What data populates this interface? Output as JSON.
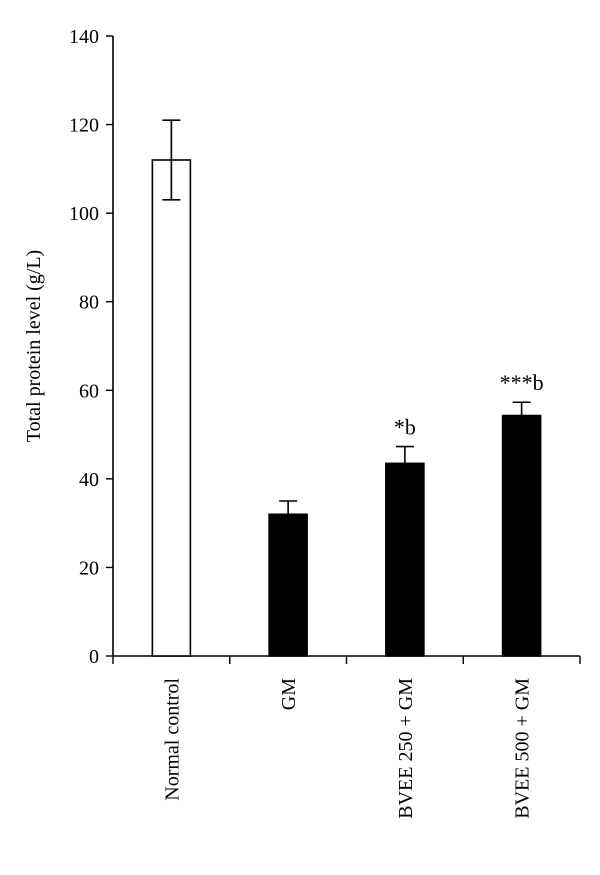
{
  "chart_data": {
    "type": "bar",
    "ylabel": "Total protein level (g/L)",
    "ylim": [
      0,
      140
    ],
    "yticks": [
      0,
      20,
      40,
      60,
      80,
      100,
      120,
      140
    ],
    "grid": false,
    "categories": [
      "Normal control",
      "GM",
      "BVEE 250 + GM",
      "BVEE 500 + GM"
    ],
    "values": [
      112,
      32,
      43.5,
      54.3
    ],
    "errors": [
      9,
      3,
      3.8,
      3
    ],
    "annotations": [
      "",
      "",
      "*b",
      "***b"
    ],
    "bar_colors": [
      "#ffffff",
      "#000000",
      "#000000",
      "#000000"
    ]
  }
}
